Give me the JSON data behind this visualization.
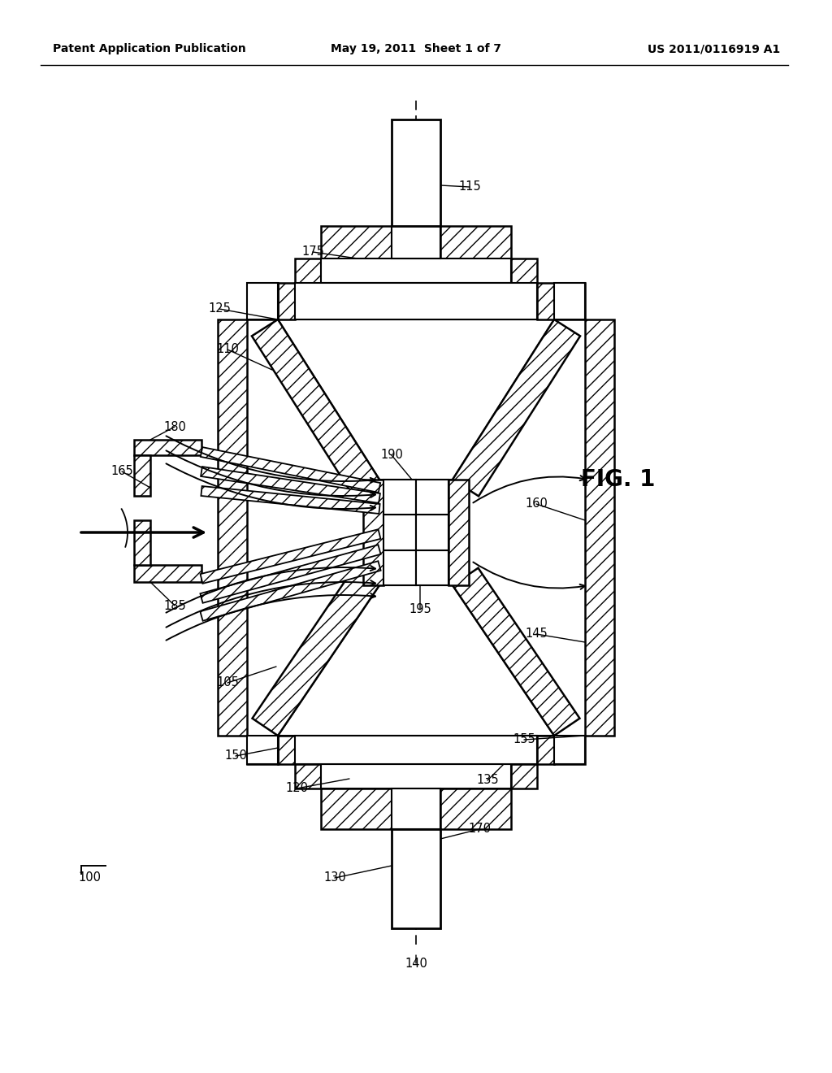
{
  "background_color": "#ffffff",
  "header_left": "Patent Application Publication",
  "header_center": "May 19, 2011  Sheet 1 of 7",
  "header_right": "US 2011/0116919 A1",
  "fig_label": "FIG. 1"
}
